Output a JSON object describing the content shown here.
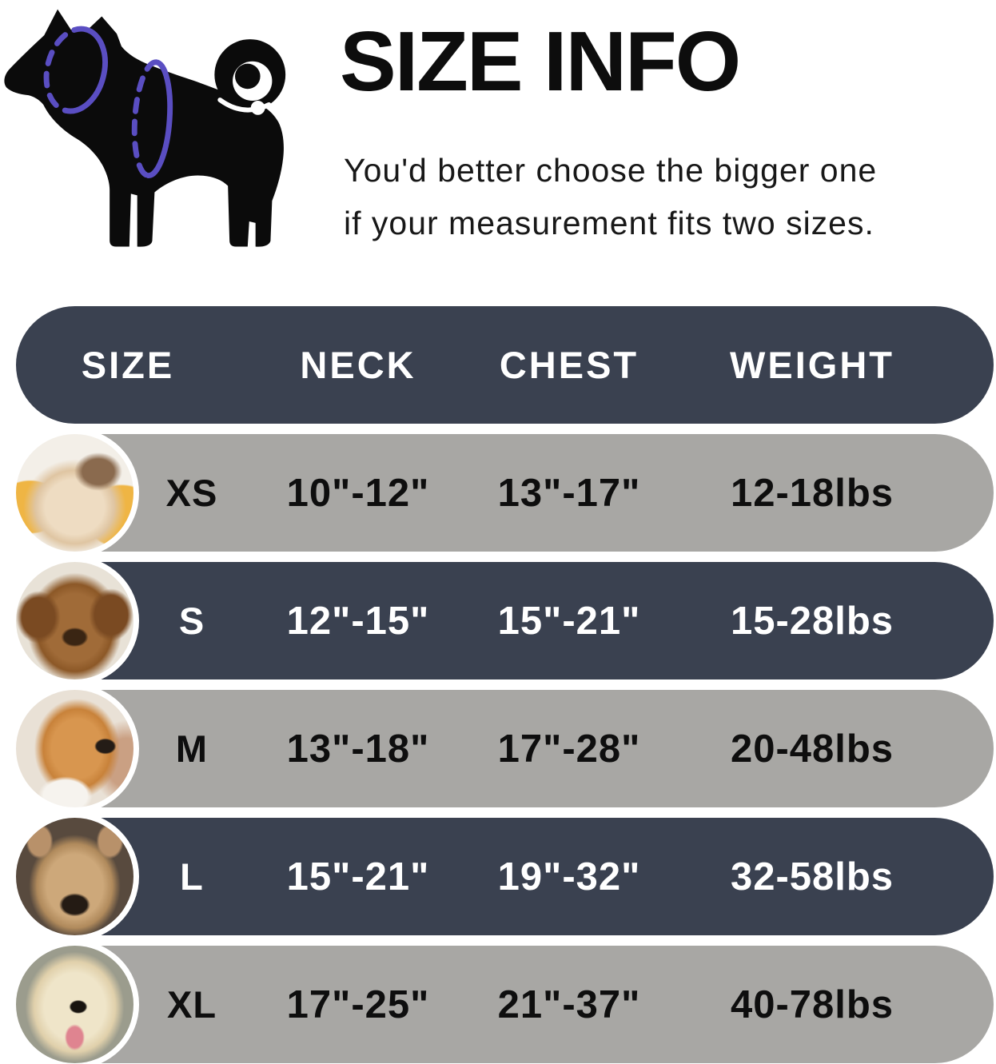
{
  "hero": {
    "title": "SIZE INFO",
    "subtitle_line1": "You'd better choose the bigger one",
    "subtitle_line2": "if your measurement fits two sizes.",
    "diagram": {
      "description": "black dog silhouette with dashed measurement rings at neck and chest",
      "silhouette_color": "#0b0b0b",
      "ring_color": "#5a4ec2"
    }
  },
  "table": {
    "columns": [
      "SIZE",
      "NECK",
      "CHEST",
      "WEIGHT"
    ],
    "colors": {
      "header_bg": "#3a4150",
      "dark_row_bg": "#3a4150",
      "light_row_bg": "#a8a7a4",
      "dark_row_text": "#ffffff",
      "light_row_text": "#0e0e0e"
    },
    "rows": [
      {
        "size": "XS",
        "neck": "10\"-12\"",
        "chest": "13\"-17\"",
        "weight": "12-18lbs",
        "variant": "light",
        "photo": "pomeranian-photo"
      },
      {
        "size": "S",
        "neck": "12\"-15\"",
        "chest": "15\"-21\"",
        "weight": "15-28lbs",
        "variant": "dark",
        "photo": "poodle-photo"
      },
      {
        "size": "M",
        "neck": "13\"-18\"",
        "chest": "17\"-28\"",
        "weight": "20-48lbs",
        "variant": "light",
        "photo": "shiba-photo"
      },
      {
        "size": "L",
        "neck": "15\"-21\"",
        "chest": "19\"-32\"",
        "weight": "32-58lbs",
        "variant": "dark",
        "photo": "french-bulldog-photo"
      },
      {
        "size": "XL",
        "neck": "17\"-25\"",
        "chest": "21\"-37\"",
        "weight": "40-78lbs",
        "variant": "light",
        "photo": "labrador-photo"
      }
    ]
  }
}
